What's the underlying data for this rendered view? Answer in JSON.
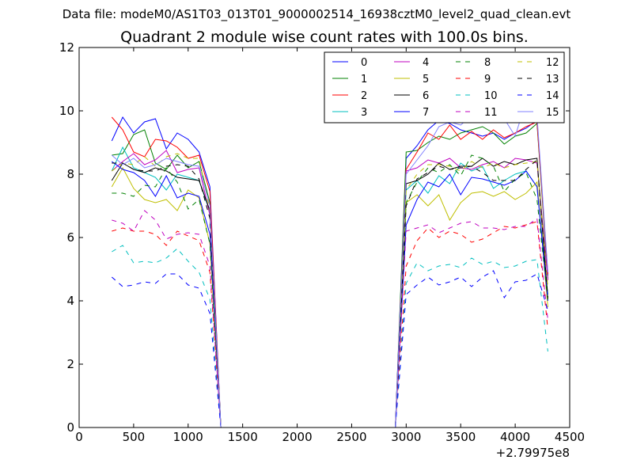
{
  "figure": {
    "suptitle": "Data file: modeM0/AS1T03_013T01_9000002514_16938cztM0_level2_quad_clean.evt",
    "title": "Quadrant 2 module wise count rates with 100.0s bins.",
    "offset_label": "+2.79975e8"
  },
  "chart_data": {
    "type": "line",
    "title": "Quadrant 2 module wise count rates with 100.0s bins.",
    "xlabel": "",
    "ylabel": "",
    "xlim": [
      0,
      4500
    ],
    "ylim": [
      0,
      12
    ],
    "x_offset": 279975000,
    "x_ticks": [
      0,
      500,
      1000,
      1500,
      2000,
      2500,
      3000,
      3500,
      4000,
      4500
    ],
    "y_ticks": [
      0,
      2,
      4,
      6,
      8,
      10,
      12
    ],
    "grid": false,
    "legend_position": "top-right",
    "legend_columns": 4,
    "x": [
      300,
      400,
      500,
      600,
      700,
      800,
      900,
      1000,
      1100,
      1200,
      1300,
      1400,
      1500,
      1600,
      1700,
      1800,
      1900,
      2000,
      2100,
      2200,
      2300,
      2400,
      2500,
      2600,
      2700,
      2800,
      2900,
      3000,
      3100,
      3200,
      3300,
      3400,
      3500,
      3600,
      3700,
      3800,
      3900,
      4000,
      4100,
      4200,
      4300
    ],
    "series": [
      {
        "name": "0",
        "color": "#0000ff",
        "dash": "solid",
        "values": [
          9.05,
          9.8,
          9.3,
          9.65,
          9.75,
          8.8,
          9.3,
          9.1,
          8.7,
          7.6,
          0,
          0,
          0,
          0,
          0,
          0,
          0,
          0,
          0,
          0,
          0,
          0,
          0,
          0,
          0,
          0,
          0,
          8.5,
          8.9,
          9.4,
          9.7,
          9.6,
          9.4,
          9.3,
          9.2,
          9.3,
          9.1,
          9.3,
          9.45,
          9.7,
          4.8
        ]
      },
      {
        "name": "1",
        "color": "#008000",
        "dash": "solid",
        "values": [
          8.6,
          8.65,
          9.25,
          9.4,
          8.35,
          8.15,
          8.6,
          8.2,
          8.4,
          7.1,
          0,
          0,
          0,
          0,
          0,
          0,
          0,
          0,
          0,
          0,
          0,
          0,
          0,
          0,
          0,
          0,
          0,
          8.7,
          8.75,
          9.0,
          9.2,
          9.1,
          9.3,
          9.4,
          9.5,
          9.3,
          8.95,
          9.2,
          9.3,
          9.6,
          4.7
        ]
      },
      {
        "name": "2",
        "color": "#ff0000",
        "dash": "solid",
        "values": [
          9.8,
          9.4,
          8.7,
          8.55,
          9.1,
          9.05,
          8.85,
          8.5,
          8.6,
          7.45,
          0,
          0,
          0,
          0,
          0,
          0,
          0,
          0,
          0,
          0,
          0,
          0,
          0,
          0,
          0,
          0,
          0,
          8.15,
          8.7,
          9.3,
          9.1,
          9.55,
          9.1,
          9.35,
          9.1,
          9.4,
          9.15,
          9.3,
          9.5,
          9.65,
          4.85
        ]
      },
      {
        "name": "3",
        "color": "#00bfbf",
        "dash": "solid",
        "values": [
          8.1,
          8.85,
          8.2,
          8.05,
          7.9,
          7.5,
          8.0,
          7.9,
          7.8,
          6.8,
          0,
          0,
          0,
          0,
          0,
          0,
          0,
          0,
          0,
          0,
          0,
          0,
          0,
          0,
          0,
          0,
          0,
          7.5,
          7.8,
          7.4,
          7.95,
          7.7,
          8.35,
          8.1,
          8.25,
          7.55,
          7.8,
          8.0,
          8.1,
          7.6,
          4.2
        ]
      },
      {
        "name": "4",
        "color": "#bf00bf",
        "dash": "solid",
        "values": [
          8.1,
          8.4,
          8.65,
          8.3,
          8.45,
          8.75,
          8.05,
          8.15,
          8.2,
          6.7,
          0,
          0,
          0,
          0,
          0,
          0,
          0,
          0,
          0,
          0,
          0,
          0,
          0,
          0,
          0,
          0,
          0,
          8.1,
          8.2,
          8.45,
          8.35,
          8.5,
          8.2,
          8.15,
          8.3,
          8.4,
          8.2,
          8.5,
          8.45,
          8.35,
          4.65
        ]
      },
      {
        "name": "5",
        "color": "#bfbf00",
        "dash": "solid",
        "values": [
          7.6,
          8.2,
          7.55,
          7.2,
          7.1,
          7.2,
          6.85,
          7.5,
          7.25,
          5.8,
          0,
          0,
          0,
          0,
          0,
          0,
          0,
          0,
          0,
          0,
          0,
          0,
          0,
          0,
          0,
          0,
          0,
          7.1,
          7.35,
          7.0,
          7.35,
          6.55,
          7.1,
          7.4,
          7.45,
          7.3,
          7.45,
          7.2,
          7.4,
          7.75,
          3.8
        ]
      },
      {
        "name": "6",
        "color": "#000000",
        "dash": "solid",
        "values": [
          7.8,
          8.35,
          8.15,
          8.05,
          8.2,
          8.1,
          7.9,
          7.85,
          7.8,
          6.85,
          0,
          0,
          0,
          0,
          0,
          0,
          0,
          0,
          0,
          0,
          0,
          0,
          0,
          0,
          0,
          0,
          0,
          7.7,
          7.8,
          8.0,
          8.35,
          8.15,
          8.25,
          8.25,
          8.5,
          8.25,
          8.4,
          8.3,
          8.45,
          8.5,
          4.05
        ]
      },
      {
        "name": "7",
        "color": "#0000ff",
        "dash": "solid",
        "values": [
          8.4,
          8.15,
          8.05,
          7.8,
          7.3,
          7.95,
          7.25,
          7.4,
          7.3,
          6.1,
          0,
          0,
          0,
          0,
          0,
          0,
          0,
          0,
          0,
          0,
          0,
          0,
          0,
          0,
          0,
          0,
          0,
          6.4,
          7.2,
          7.75,
          7.6,
          8.0,
          7.35,
          7.9,
          7.85,
          7.75,
          7.65,
          7.8,
          8.1,
          7.6,
          4.0
        ]
      },
      {
        "name": "8",
        "color": "#008000",
        "dash": "dashed",
        "values": [
          7.4,
          7.4,
          7.3,
          7.65,
          7.6,
          8.2,
          7.75,
          6.9,
          7.2,
          5.8,
          0,
          0,
          0,
          0,
          0,
          0,
          0,
          0,
          0,
          0,
          0,
          0,
          0,
          0,
          0,
          0,
          0,
          7.1,
          7.75,
          8.2,
          8.05,
          8.3,
          7.95,
          8.6,
          8.5,
          8.25,
          7.45,
          7.85,
          8.05,
          7.2,
          4.0
        ]
      },
      {
        "name": "9",
        "color": "#ff0000",
        "dash": "dashed",
        "values": [
          6.2,
          6.3,
          6.2,
          6.2,
          6.1,
          5.75,
          6.2,
          6.05,
          5.9,
          4.9,
          0,
          0,
          0,
          0,
          0,
          0,
          0,
          0,
          0,
          0,
          0,
          0,
          0,
          0,
          0,
          0,
          0,
          5.1,
          5.9,
          6.3,
          6.0,
          6.2,
          6.1,
          5.85,
          5.95,
          6.15,
          6.35,
          6.3,
          6.4,
          6.5,
          3.1
        ]
      },
      {
        "name": "10",
        "color": "#00bfbf",
        "dash": "dashed",
        "values": [
          5.55,
          5.75,
          5.2,
          5.25,
          5.2,
          5.35,
          5.65,
          5.25,
          4.9,
          4.05,
          0,
          0,
          0,
          0,
          0,
          0,
          0,
          0,
          0,
          0,
          0,
          0,
          0,
          0,
          0,
          0,
          0,
          4.55,
          5.2,
          4.95,
          5.1,
          5.15,
          5.05,
          5.35,
          5.15,
          5.25,
          5.05,
          5.1,
          5.25,
          5.3,
          2.4
        ]
      },
      {
        "name": "11",
        "color": "#bf00bf",
        "dash": "dashed",
        "values": [
          6.55,
          6.45,
          6.2,
          6.85,
          6.55,
          5.95,
          6.1,
          6.15,
          6.1,
          5.1,
          0,
          0,
          0,
          0,
          0,
          0,
          0,
          0,
          0,
          0,
          0,
          0,
          0,
          0,
          0,
          0,
          0,
          6.2,
          6.3,
          6.4,
          6.15,
          6.3,
          6.45,
          6.5,
          6.3,
          6.3,
          6.25,
          6.35,
          6.35,
          6.6,
          3.4
        ]
      },
      {
        "name": "12",
        "color": "#bfbf00",
        "dash": "dashed",
        "values": [
          8.1,
          8.35,
          8.3,
          8.55,
          8.25,
          8.55,
          8.65,
          8.5,
          8.5,
          6.85,
          0,
          0,
          0,
          0,
          0,
          0,
          0,
          0,
          0,
          0,
          0,
          0,
          0,
          0,
          0,
          0,
          0,
          7.5,
          8.0,
          8.3,
          8.3,
          8.25,
          8.1,
          8.4,
          8.2,
          8.35,
          8.2,
          8.3,
          8.35,
          8.4,
          4.4
        ]
      },
      {
        "name": "13",
        "color": "#000000",
        "dash": "dashed",
        "values": [
          8.35,
          8.35,
          8.15,
          8.1,
          8.1,
          8.25,
          8.3,
          8.25,
          7.85,
          6.6,
          0,
          0,
          0,
          0,
          0,
          0,
          0,
          0,
          0,
          0,
          0,
          0,
          0,
          0,
          0,
          0,
          0,
          7.0,
          7.85,
          8.05,
          8.25,
          8.15,
          8.2,
          8.25,
          8.05,
          7.8,
          7.8,
          7.8,
          8.15,
          8.45,
          4.1
        ]
      },
      {
        "name": "14",
        "color": "#0000ff",
        "dash": "dashed",
        "values": [
          4.75,
          4.45,
          4.5,
          4.6,
          4.55,
          4.85,
          4.85,
          4.5,
          4.4,
          3.6,
          0,
          0,
          0,
          0,
          0,
          0,
          0,
          0,
          0,
          0,
          0,
          0,
          0,
          0,
          0,
          0,
          0,
          4.2,
          4.5,
          4.75,
          4.5,
          4.6,
          4.75,
          4.45,
          4.75,
          4.95,
          4.1,
          4.6,
          4.65,
          4.85,
          3.7
        ]
      },
      {
        "name": "15",
        "color": "#8080ff",
        "dash": "solid",
        "values": [
          8.6,
          8.3,
          8.5,
          8.2,
          8.3,
          8.5,
          8.4,
          8.3,
          8.25,
          7.0,
          0,
          0,
          0,
          0,
          0,
          0,
          0,
          0,
          0,
          0,
          0,
          0,
          0,
          0,
          0,
          0,
          0,
          8.0,
          8.45,
          8.9,
          9.5,
          9.65,
          9.55,
          9.85,
          9.95,
          9.85,
          9.75,
          9.2,
          10.3,
          9.85,
          4.9
        ]
      }
    ]
  }
}
